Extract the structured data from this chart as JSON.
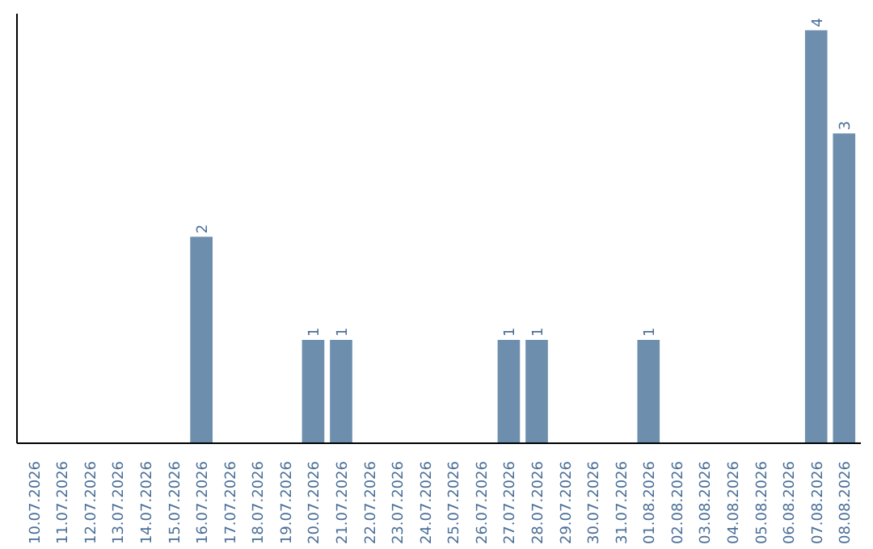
{
  "chart_data": {
    "type": "bar",
    "categories": [
      "10.07.2026",
      "11.07.2026",
      "12.07.2026",
      "13.07.2026",
      "14.07.2026",
      "15.07.2026",
      "16.07.2026",
      "17.07.2026",
      "18.07.2026",
      "19.07.2026",
      "20.07.2026",
      "21.07.2026",
      "22.07.2026",
      "23.07.2026",
      "24.07.2026",
      "25.07.2026",
      "26.07.2026",
      "27.07.2026",
      "28.07.2026",
      "29.07.2026",
      "30.07.2026",
      "31.07.2026",
      "01.08.2026",
      "02.08.2026",
      "03.08.2026",
      "04.08.2026",
      "05.08.2026",
      "06.08.2026",
      "07.08.2026",
      "08.08.2026"
    ],
    "values": [
      0,
      0,
      0,
      0,
      0,
      0,
      2,
      0,
      0,
      0,
      1,
      1,
      0,
      0,
      0,
      0,
      0,
      1,
      1,
      0,
      0,
      0,
      1,
      0,
      0,
      0,
      0,
      0,
      4,
      3
    ],
    "value_labels": [
      null,
      null,
      null,
      null,
      null,
      null,
      "2",
      null,
      null,
      null,
      "1",
      "1",
      null,
      null,
      null,
      null,
      null,
      "1",
      "1",
      null,
      null,
      null,
      "1",
      null,
      null,
      null,
      null,
      null,
      "4",
      "3"
    ],
    "color": "#6d8fad",
    "grid": false
  }
}
